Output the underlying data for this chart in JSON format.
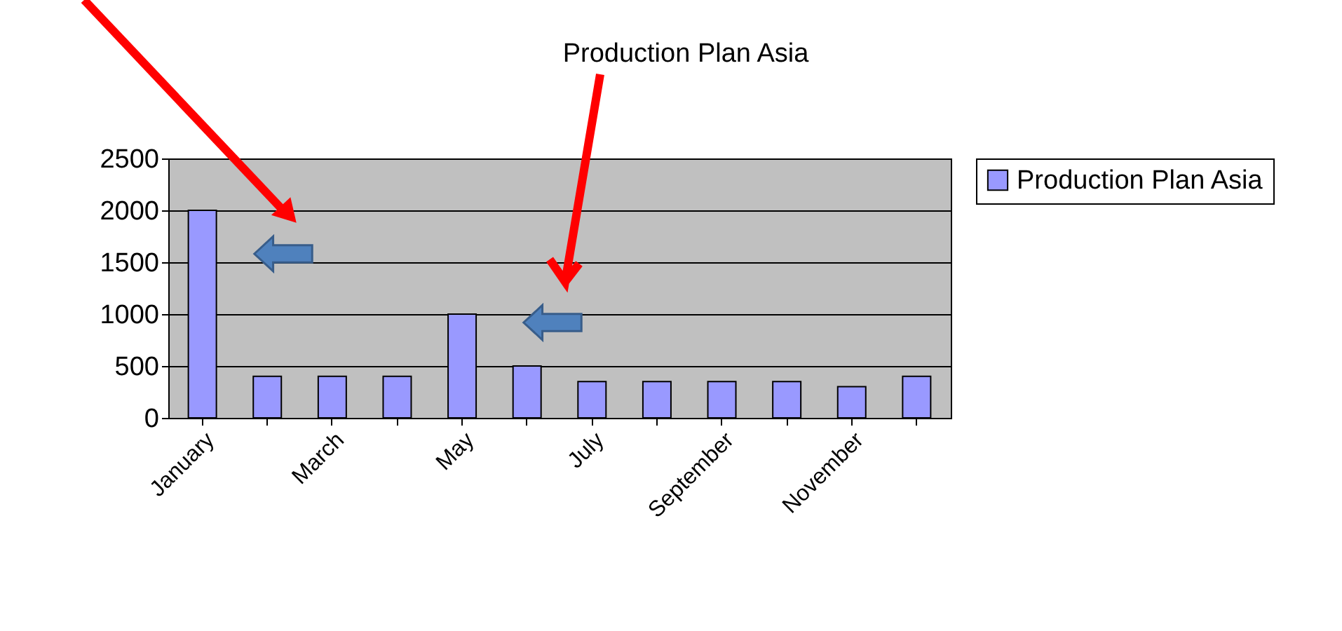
{
  "chart_data": {
    "type": "bar",
    "title": "Production Plan Asia",
    "categories": [
      "January",
      null,
      "March",
      null,
      "May",
      null,
      "July",
      null,
      "September",
      null,
      "November",
      null
    ],
    "series": [
      {
        "name": "Production Plan Asia",
        "color": "#9999ff",
        "values": [
          2000,
          400,
          400,
          400,
          1000,
          500,
          350,
          350,
          350,
          350,
          300,
          400
        ]
      }
    ],
    "ylim": [
      0,
      2500
    ],
    "yticks": [
      0,
      500,
      1000,
      1500,
      2000,
      2500
    ],
    "grid": "y",
    "legend": "right"
  }
}
